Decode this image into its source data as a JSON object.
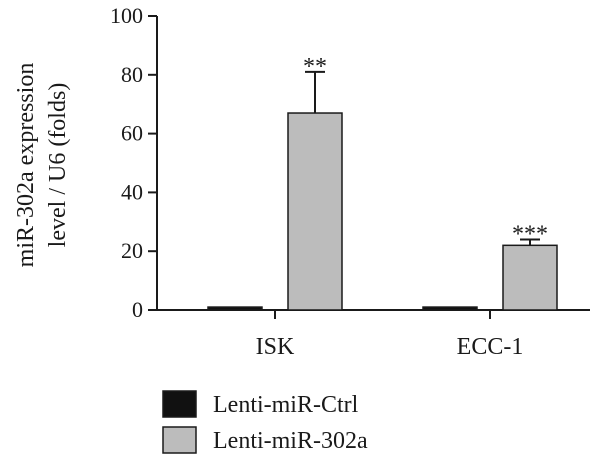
{
  "chart_data": {
    "type": "bar",
    "categories": [
      "ISK",
      "ECC-1"
    ],
    "series": [
      {
        "name": "Lenti-miR-Ctrl",
        "values": [
          1,
          1
        ],
        "errors": [
          0,
          0
        ],
        "color": "#111111"
      },
      {
        "name": "Lenti-miR-302a",
        "values": [
          67,
          22
        ],
        "errors": [
          14,
          2
        ],
        "color": "#bcbcbc"
      }
    ],
    "annotations": [
      "**",
      "***"
    ],
    "ylabel_line1": "miR-302a expression",
    "ylabel_line2": "level / U6 (folds)",
    "xlabel": "",
    "ylim": [
      0,
      100
    ],
    "yticks": [
      0,
      20,
      40,
      60,
      80,
      100
    ],
    "grid": false,
    "legend_position": "bottom-left"
  }
}
